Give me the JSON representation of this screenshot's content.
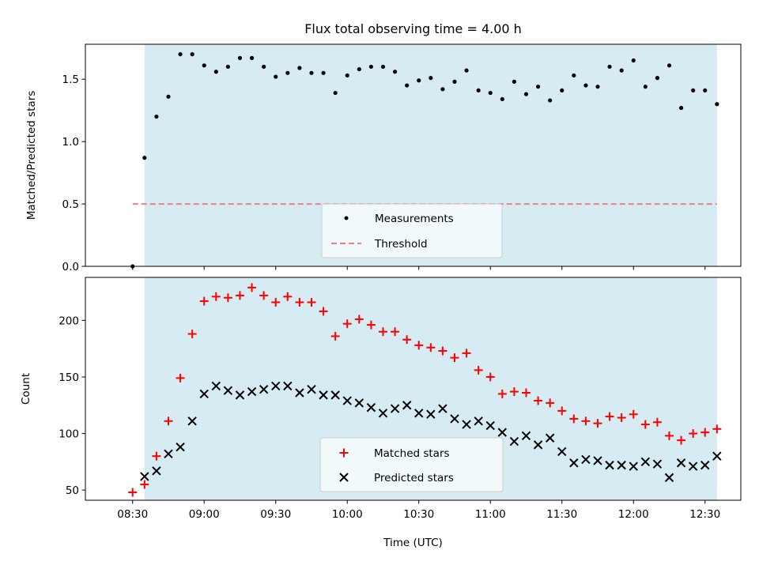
{
  "colors": {
    "shade": "#add8e6",
    "threshold": "#f08080",
    "matched": "#ff0000",
    "predicted": "#000000",
    "measurement": "#000000"
  },
  "chart_data": [
    {
      "type": "scatter",
      "title": "Flux total observing time = 4.00 h",
      "xlabel": "",
      "ylabel": "Matched/Predicted stars",
      "xlim": [
        -0.33,
        4.25
      ],
      "ylim": [
        0,
        1.78
      ],
      "yticks": [
        0.0,
        0.5,
        1.0,
        1.5
      ],
      "ytick_labels": [
        "0.0",
        "0.5",
        "1.0",
        "1.5"
      ],
      "shaded_region": [
        0.0833,
        4.0833
      ],
      "threshold": 0.5,
      "threshold_x": [
        0,
        4.0833
      ],
      "legend": [
        "Measurements",
        "Threshold"
      ],
      "legend_position": "lower-center",
      "x": [
        0.0,
        0.0833,
        0.1667,
        0.25,
        0.3333,
        0.4167,
        0.5,
        0.5833,
        0.6667,
        0.75,
        0.8333,
        0.9167,
        1.0,
        1.0833,
        1.1667,
        1.25,
        1.3333,
        1.4167,
        1.5,
        1.5833,
        1.6667,
        1.75,
        1.8333,
        1.9167,
        2.0,
        2.0833,
        2.1667,
        2.25,
        2.3333,
        2.4167,
        2.5,
        2.5833,
        2.6667,
        2.75,
        2.8333,
        2.9167,
        3.0,
        3.0833,
        3.1667,
        3.25,
        3.3333,
        3.4167,
        3.5,
        3.5833,
        3.6667,
        3.75,
        3.8333,
        3.9167,
        4.0,
        4.0833
      ],
      "values": [
        0.0,
        0.87,
        1.2,
        1.36,
        1.7,
        1.7,
        1.61,
        1.56,
        1.6,
        1.67,
        1.67,
        1.6,
        1.52,
        1.55,
        1.59,
        1.55,
        1.55,
        1.39,
        1.53,
        1.58,
        1.6,
        1.6,
        1.56,
        1.45,
        1.49,
        1.51,
        1.42,
        1.48,
        1.57,
        1.41,
        1.39,
        1.34,
        1.48,
        1.38,
        1.44,
        1.33,
        1.41,
        1.53,
        1.45,
        1.44,
        1.6,
        1.57,
        1.65,
        1.44,
        1.51,
        1.61,
        1.27,
        1.41,
        1.41,
        1.3
      ]
    },
    {
      "type": "scatter",
      "title": "",
      "xlabel": "Time (UTC)",
      "ylabel": "Count",
      "xlim": [
        -0.33,
        4.25
      ],
      "ylim": [
        41,
        238
      ],
      "yticks": [
        50,
        100,
        150,
        200
      ],
      "ytick_labels": [
        "50",
        "100",
        "150",
        "200"
      ],
      "xticks": [
        0,
        0.5,
        1.0,
        1.5,
        2.0,
        2.5,
        3.0,
        3.5,
        4.0
      ],
      "xtick_labels": [
        "08:30",
        "09:00",
        "09:30",
        "10:00",
        "10:30",
        "11:00",
        "11:30",
        "12:00",
        "12:30"
      ],
      "shaded_region": [
        0.0833,
        4.0833
      ],
      "legend": [
        "Matched stars",
        "Predicted stars"
      ],
      "legend_position": "lower-center",
      "x": [
        0.0,
        0.0833,
        0.1667,
        0.25,
        0.3333,
        0.4167,
        0.5,
        0.5833,
        0.6667,
        0.75,
        0.8333,
        0.9167,
        1.0,
        1.0833,
        1.1667,
        1.25,
        1.3333,
        1.4167,
        1.5,
        1.5833,
        1.6667,
        1.75,
        1.8333,
        1.9167,
        2.0,
        2.0833,
        2.1667,
        2.25,
        2.3333,
        2.4167,
        2.5,
        2.5833,
        2.6667,
        2.75,
        2.8333,
        2.9167,
        3.0,
        3.0833,
        3.1667,
        3.25,
        3.3333,
        3.4167,
        3.5,
        3.5833,
        3.6667,
        3.75,
        3.8333,
        3.9167,
        4.0,
        4.0833
      ],
      "series": [
        {
          "name": "Matched stars",
          "values": [
            48,
            55,
            80,
            111,
            149,
            188,
            217,
            221,
            220,
            222,
            229,
            222,
            216,
            221,
            216,
            216,
            208,
            186,
            197,
            201,
            196,
            190,
            190,
            183,
            178,
            176,
            173,
            167,
            171,
            156,
            150,
            135,
            137,
            136,
            129,
            127,
            120,
            113,
            111,
            109,
            115,
            114,
            117,
            108,
            110,
            98,
            94,
            100,
            101,
            104
          ]
        },
        {
          "name": "Predicted stars",
          "values": [
            null,
            62,
            67,
            82,
            88,
            111,
            135,
            142,
            138,
            134,
            137,
            139,
            142,
            142,
            136,
            139,
            134,
            134,
            129,
            127,
            123,
            118,
            122,
            125,
            118,
            117,
            122,
            113,
            108,
            111,
            107,
            101,
            93,
            98,
            90,
            96,
            84,
            74,
            77,
            76,
            72,
            72,
            71,
            75,
            73,
            61,
            74,
            71,
            72,
            80
          ]
        }
      ]
    }
  ]
}
